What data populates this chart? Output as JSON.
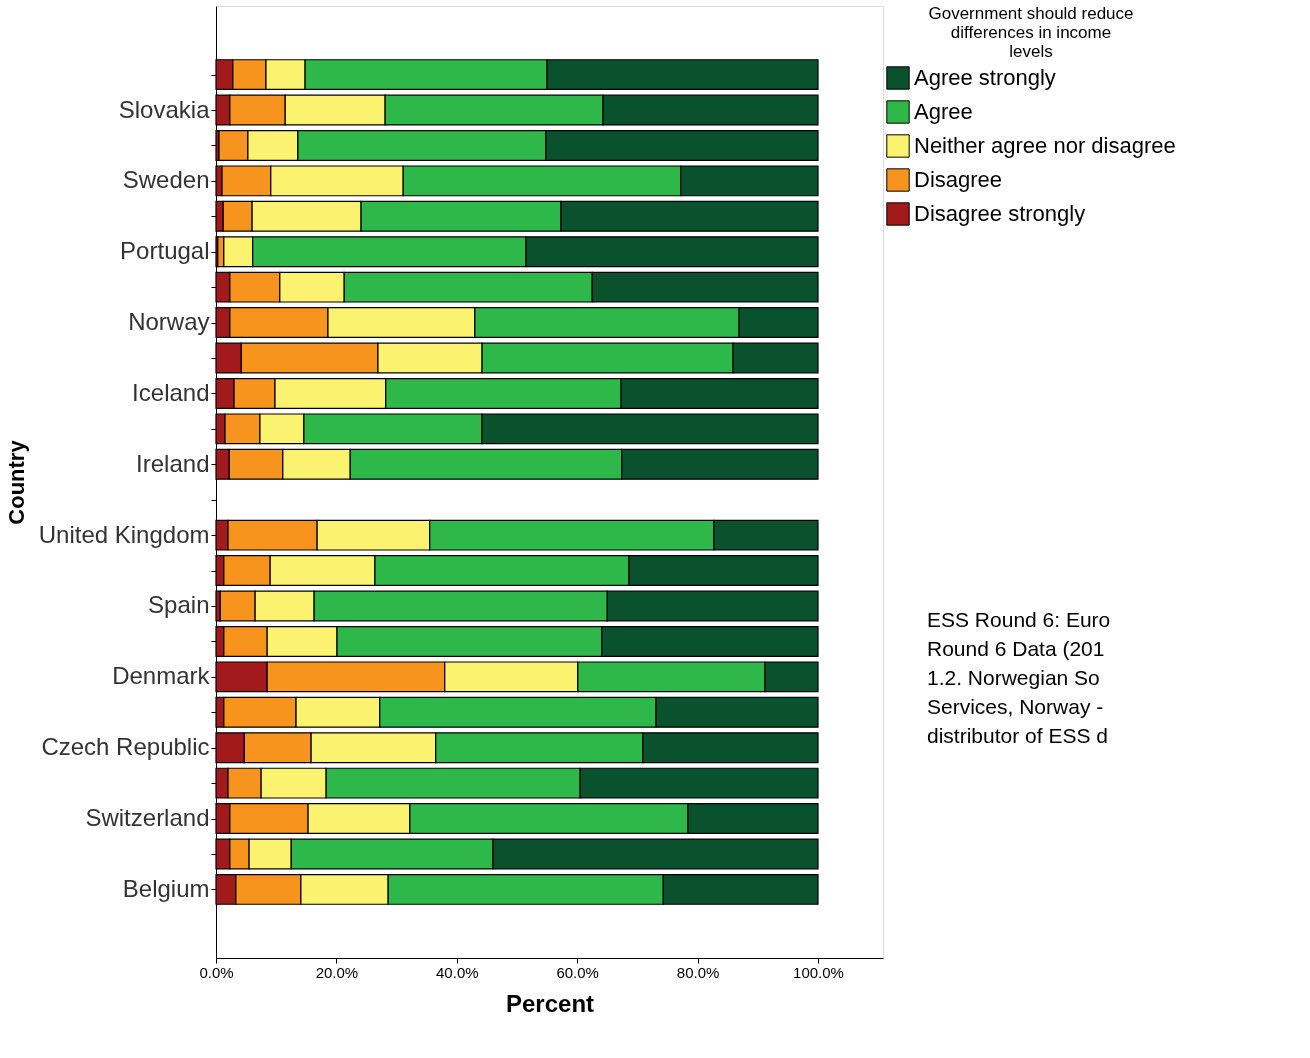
{
  "chart_data": {
    "type": "bar",
    "orientation": "horizontal",
    "stacked": true,
    "xlabel": "Percent",
    "ylabel": "Country",
    "legend_title": "Government should reduce differences in income levels",
    "legend": "top right",
    "grid": false,
    "categories": [
      null,
      "Slovakia",
      null,
      "Sweden",
      null,
      "Portugal",
      null,
      "Norway",
      null,
      "Iceland",
      null,
      "Ireland",
      null,
      "United Kingdom",
      null,
      "Spain",
      null,
      "Denmark",
      null,
      "Czech Republic",
      null,
      "Switzerland",
      null,
      "Belgium"
    ],
    "xlim": [
      0,
      110.8
    ],
    "xticks": [
      {
        "value": 0,
        "label": "0.0%"
      },
      {
        "value": 20,
        "label": "20.0%"
      },
      {
        "value": 40,
        "label": "40.0%"
      },
      {
        "value": 60,
        "label": "60.0%"
      },
      {
        "value": 80,
        "label": "80.0%"
      },
      {
        "value": 100,
        "label": "100.0%"
      }
    ],
    "series": [
      {
        "name": "Disagree strongly",
        "color": "#a31a1d",
        "values": [
          2.8,
          2.3,
          0.5,
          1.0,
          1.2,
          0.3,
          2.3,
          2.3,
          4.2,
          3.0,
          1.5,
          2.2,
          null,
          2.0,
          1.3,
          0.7,
          1.3,
          8.5,
          1.3,
          4.7,
          2.0,
          2.3,
          2.3,
          3.3
        ]
      },
      {
        "name": "Disagree",
        "color": "#f7941d",
        "values": [
          5.5,
          9.2,
          4.8,
          8.1,
          4.8,
          1.0,
          8.3,
          16.3,
          22.7,
          6.8,
          5.8,
          8.9,
          null,
          14.8,
          7.7,
          5.8,
          7.2,
          29.5,
          12.0,
          11.1,
          5.5,
          13.0,
          3.2,
          10.8
        ]
      },
      {
        "name": "Neither agree nor disagree",
        "color": "#fbf36f",
        "values": [
          6.5,
          16.6,
          8.3,
          22.0,
          18.1,
          4.8,
          10.7,
          24.4,
          17.3,
          18.4,
          7.3,
          11.2,
          null,
          18.7,
          17.4,
          9.8,
          11.6,
          22.1,
          13.9,
          20.7,
          10.8,
          16.9,
          7.0,
          14.5
        ]
      },
      {
        "name": "Agree",
        "color": "#2fb84a",
        "values": [
          40.2,
          36.2,
          41.2,
          46.1,
          33.2,
          45.4,
          41.2,
          43.9,
          41.7,
          39.1,
          29.6,
          45.1,
          null,
          47.2,
          42.2,
          48.7,
          44.0,
          31.1,
          45.9,
          34.4,
          42.2,
          46.2,
          33.5,
          45.7
        ]
      },
      {
        "name": "Agree strongly",
        "color": "#0a512d",
        "values": [
          45.0,
          35.7,
          45.2,
          22.8,
          42.7,
          48.5,
          37.5,
          13.1,
          14.1,
          32.7,
          55.8,
          32.6,
          null,
          17.3,
          31.4,
          35.0,
          35.9,
          8.8,
          26.9,
          29.1,
          39.5,
          21.6,
          54.0,
          25.7
        ]
      }
    ],
    "annotations": [
      "ESS Round 6: Euro\nRound 6 Data (201\n1.2. Norwegian So\nServices, Norway -\ndistributor of ESS d"
    ]
  }
}
